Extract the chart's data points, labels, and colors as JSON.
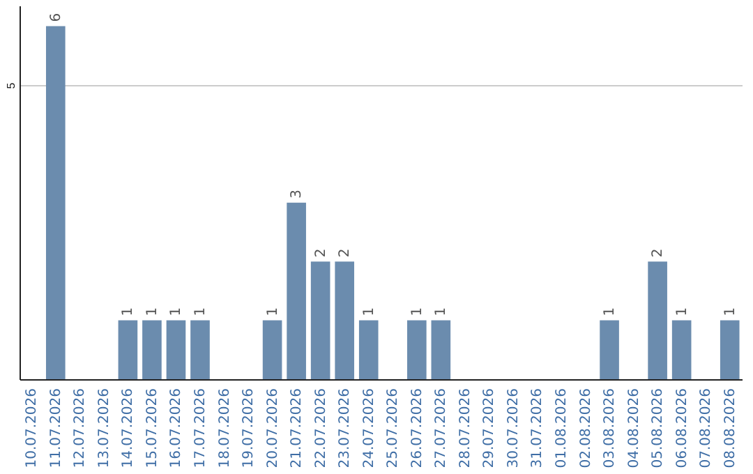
{
  "chart_data": {
    "type": "bar",
    "categories": [
      "10.07.2026",
      "11.07.2026",
      "12.07.2026",
      "13.07.2026",
      "14.07.2026",
      "15.07.2026",
      "16.07.2026",
      "17.07.2026",
      "18.07.2026",
      "19.07.2026",
      "20.07.2026",
      "21.07.2026",
      "22.07.2026",
      "23.07.2026",
      "24.07.2026",
      "25.07.2026",
      "26.07.2026",
      "27.07.2026",
      "28.07.2026",
      "29.07.2026",
      "30.07.2026",
      "31.07.2026",
      "01.08.2026",
      "02.08.2026",
      "03.08.2026",
      "04.08.2026",
      "05.08.2026",
      "06.08.2026",
      "07.08.2026",
      "08.08.2026"
    ],
    "values": [
      0,
      6,
      0,
      0,
      1,
      1,
      1,
      1,
      0,
      0,
      1,
      3,
      2,
      2,
      1,
      0,
      1,
      1,
      0,
      0,
      0,
      0,
      0,
      0,
      1,
      0,
      2,
      1,
      0,
      1
    ],
    "value_labels": [
      null,
      "6",
      null,
      null,
      "1",
      "1",
      "1",
      "1",
      null,
      null,
      "1",
      "3",
      "2",
      "2",
      "1",
      null,
      "1",
      "1",
      null,
      null,
      null,
      null,
      null,
      null,
      "1",
      null,
      "2",
      "1",
      null,
      "1"
    ],
    "color": "#6b8cae",
    "ylim": [
      0,
      6.35
    ],
    "yticks": [
      5
    ],
    "grid": "y"
  }
}
